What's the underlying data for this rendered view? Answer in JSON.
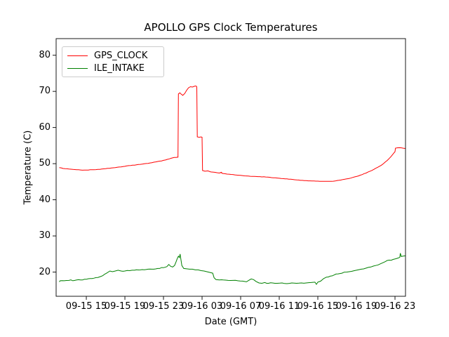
{
  "chart_data": {
    "type": "line",
    "title": "APOLLO GPS Clock Temperatures",
    "xlabel": "Date (GMT)",
    "ylabel": "Temperature (C)",
    "grid": false,
    "legend_position": "upper left",
    "x_unit": "hours since 09-15 00:00 GMT",
    "xlim": [
      11.87,
      48.09
    ],
    "ylim": [
      13.3,
      84.6
    ],
    "x_ticks": [
      {
        "h": 15,
        "label": "09-15 15"
      },
      {
        "h": 19,
        "label": "09-15 19"
      },
      {
        "h": 23,
        "label": "09-15 23"
      },
      {
        "h": 27,
        "label": "09-16 03"
      },
      {
        "h": 31,
        "label": "09-16 07"
      },
      {
        "h": 35,
        "label": "09-16 11"
      },
      {
        "h": 39,
        "label": "09-16 15"
      },
      {
        "h": 43,
        "label": "09-16 19"
      },
      {
        "h": 47,
        "label": "09-16 23"
      }
    ],
    "y_ticks": [
      20,
      30,
      40,
      50,
      60,
      70,
      80
    ],
    "series": [
      {
        "name": "GPS_CLOCK",
        "color": "#ff0000",
        "noise": 0.04,
        "points": [
          [
            12.2,
            48.9
          ],
          [
            12.8,
            48.6
          ],
          [
            13.6,
            48.4
          ],
          [
            14.6,
            48.2
          ],
          [
            15.6,
            48.3
          ],
          [
            16.6,
            48.5
          ],
          [
            17.6,
            48.8
          ],
          [
            18.6,
            49.1
          ],
          [
            19.6,
            49.5
          ],
          [
            20.6,
            49.8
          ],
          [
            21.6,
            50.2
          ],
          [
            22.4,
            50.6
          ],
          [
            23.2,
            51.0
          ],
          [
            23.8,
            51.5
          ],
          [
            24.1,
            51.7
          ],
          [
            24.5,
            51.8
          ],
          [
            24.55,
            69.3
          ],
          [
            24.7,
            69.6
          ],
          [
            24.85,
            69.2
          ],
          [
            25.0,
            68.9
          ],
          [
            25.2,
            69.4
          ],
          [
            25.4,
            70.3
          ],
          [
            25.6,
            71.0
          ],
          [
            25.8,
            71.3
          ],
          [
            26.0,
            71.2
          ],
          [
            26.2,
            71.4
          ],
          [
            26.35,
            71.5
          ],
          [
            26.45,
            71.3
          ],
          [
            26.5,
            57.4
          ],
          [
            26.7,
            57.3
          ],
          [
            26.9,
            57.4
          ],
          [
            27.0,
            57.3
          ],
          [
            27.05,
            48.1
          ],
          [
            27.3,
            47.9
          ],
          [
            27.6,
            48.0
          ],
          [
            27.9,
            47.7
          ],
          [
            28.3,
            47.6
          ],
          [
            28.8,
            47.4
          ],
          [
            29.0,
            47.6
          ],
          [
            29.1,
            47.3
          ],
          [
            29.6,
            47.1
          ],
          [
            30.4,
            46.9
          ],
          [
            31.2,
            46.7
          ],
          [
            32.0,
            46.5
          ],
          [
            32.8,
            46.4
          ],
          [
            33.6,
            46.3
          ],
          [
            34.4,
            46.1
          ],
          [
            35.2,
            45.9
          ],
          [
            36.0,
            45.7
          ],
          [
            36.8,
            45.5
          ],
          [
            37.6,
            45.3
          ],
          [
            38.4,
            45.2
          ],
          [
            39.2,
            45.1
          ],
          [
            40.0,
            45.1
          ],
          [
            40.8,
            45.2
          ],
          [
            41.6,
            45.6
          ],
          [
            42.4,
            46.0
          ],
          [
            43.2,
            46.6
          ],
          [
            44.0,
            47.4
          ],
          [
            44.8,
            48.4
          ],
          [
            45.6,
            49.6
          ],
          [
            46.2,
            50.9
          ],
          [
            46.6,
            52.0
          ],
          [
            46.9,
            53.0
          ],
          [
            47.0,
            53.3
          ],
          [
            47.05,
            54.3
          ],
          [
            47.5,
            54.4
          ],
          [
            48.05,
            54.2
          ]
        ]
      },
      {
        "name": "ILE_INTAKE",
        "color": "#008000",
        "noise": 0.13,
        "points": [
          [
            12.2,
            17.3
          ],
          [
            12.3,
            17.6
          ],
          [
            12.7,
            17.6
          ],
          [
            13.2,
            17.7
          ],
          [
            13.8,
            17.7
          ],
          [
            14.4,
            17.8
          ],
          [
            15.0,
            18.0
          ],
          [
            15.6,
            18.2
          ],
          [
            16.2,
            18.5
          ],
          [
            16.7,
            19.0
          ],
          [
            17.1,
            19.7
          ],
          [
            17.45,
            20.3
          ],
          [
            17.7,
            20.1
          ],
          [
            18.0,
            20.3
          ],
          [
            18.3,
            20.5
          ],
          [
            18.6,
            20.3
          ],
          [
            19.0,
            20.3
          ],
          [
            19.5,
            20.4
          ],
          [
            20.0,
            20.5
          ],
          [
            20.6,
            20.6
          ],
          [
            21.2,
            20.7
          ],
          [
            21.8,
            20.8
          ],
          [
            22.4,
            21.0
          ],
          [
            23.0,
            21.2
          ],
          [
            23.35,
            21.5
          ],
          [
            23.55,
            22.1
          ],
          [
            23.75,
            21.6
          ],
          [
            23.95,
            21.4
          ],
          [
            24.15,
            21.8
          ],
          [
            24.3,
            22.8
          ],
          [
            24.45,
            23.9
          ],
          [
            24.55,
            24.4
          ],
          [
            24.65,
            24.0
          ],
          [
            24.72,
            25.0
          ],
          [
            24.8,
            23.6
          ],
          [
            24.9,
            21.8
          ],
          [
            25.1,
            21.0
          ],
          [
            25.4,
            20.9
          ],
          [
            25.7,
            20.8
          ],
          [
            26.0,
            20.8
          ],
          [
            26.3,
            20.6
          ],
          [
            26.6,
            20.6
          ],
          [
            26.9,
            20.4
          ],
          [
            27.2,
            20.3
          ],
          [
            27.5,
            20.1
          ],
          [
            27.8,
            19.9
          ],
          [
            28.1,
            19.7
          ],
          [
            28.25,
            18.4
          ],
          [
            28.45,
            17.9
          ],
          [
            28.8,
            17.8
          ],
          [
            29.2,
            17.8
          ],
          [
            29.7,
            17.7
          ],
          [
            30.2,
            17.7
          ],
          [
            30.7,
            17.6
          ],
          [
            31.2,
            17.5
          ],
          [
            31.6,
            17.3
          ],
          [
            31.9,
            17.8
          ],
          [
            32.1,
            18.1
          ],
          [
            32.35,
            17.9
          ],
          [
            32.6,
            17.4
          ],
          [
            32.9,
            17.0
          ],
          [
            33.2,
            16.9
          ],
          [
            33.5,
            17.1
          ],
          [
            33.9,
            16.9
          ],
          [
            34.3,
            17.0
          ],
          [
            34.8,
            16.9
          ],
          [
            35.3,
            17.0
          ],
          [
            35.8,
            16.8
          ],
          [
            36.3,
            17.0
          ],
          [
            36.8,
            16.9
          ],
          [
            37.3,
            17.0
          ],
          [
            37.8,
            17.0
          ],
          [
            38.3,
            17.1
          ],
          [
            38.7,
            17.2
          ],
          [
            38.85,
            16.6
          ],
          [
            39.0,
            17.2
          ],
          [
            39.3,
            17.5
          ],
          [
            39.6,
            18.2
          ],
          [
            39.9,
            18.6
          ],
          [
            40.3,
            18.9
          ],
          [
            40.7,
            19.2
          ],
          [
            41.1,
            19.5
          ],
          [
            41.5,
            19.7
          ],
          [
            42.0,
            20.0
          ],
          [
            42.5,
            20.2
          ],
          [
            43.0,
            20.5
          ],
          [
            43.5,
            20.8
          ],
          [
            44.0,
            21.1
          ],
          [
            44.5,
            21.4
          ],
          [
            45.0,
            21.8
          ],
          [
            45.5,
            22.3
          ],
          [
            46.0,
            22.9
          ],
          [
            46.4,
            23.3
          ],
          [
            46.8,
            23.5
          ],
          [
            47.1,
            23.7
          ],
          [
            47.35,
            23.9
          ],
          [
            47.5,
            24.1
          ],
          [
            47.55,
            25.2
          ],
          [
            47.65,
            24.3
          ],
          [
            47.8,
            24.4
          ],
          [
            48.05,
            24.5
          ]
        ]
      }
    ]
  }
}
